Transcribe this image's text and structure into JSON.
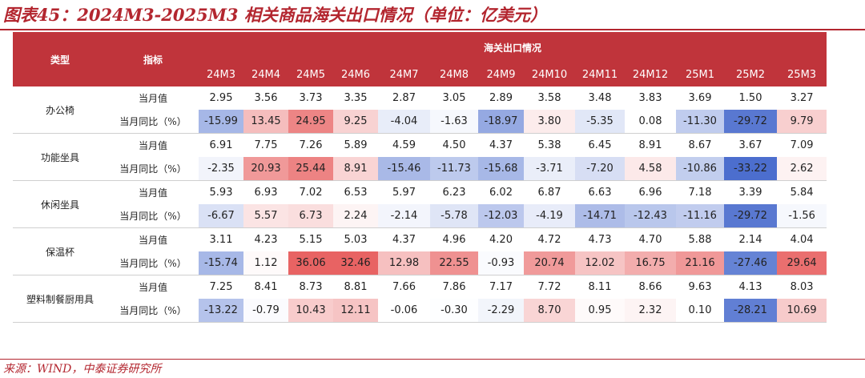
{
  "title": "图表45：2024M3-2025M3 相关商品海关出口情况（单位：亿美元）",
  "header": {
    "type_label": "类型",
    "indicator_label": "指标",
    "group_label": "海关出口情况",
    "months": [
      "24M3",
      "24M4",
      "24M5",
      "24M6",
      "24M7",
      "24M8",
      "24M9",
      "24M10",
      "24M11",
      "24M12",
      "25M1",
      "25M2",
      "25M3"
    ]
  },
  "row_labels": {
    "value": "当月值",
    "yoy": "当月同比（%）"
  },
  "categories": [
    {
      "name": "办公椅",
      "value": [
        "2.95",
        "3.56",
        "3.73",
        "3.35",
        "2.87",
        "3.05",
        "2.89",
        "3.58",
        "3.48",
        "3.83",
        "3.69",
        "1.50",
        "3.27"
      ],
      "yoy": [
        "-15.99",
        "13.45",
        "24.95",
        "9.25",
        "-4.04",
        "-1.63",
        "-18.97",
        "3.80",
        "-5.35",
        "0.08",
        "-11.30",
        "-29.72",
        "9.79"
      ]
    },
    {
      "name": "功能坐具",
      "value": [
        "6.91",
        "7.75",
        "7.26",
        "5.89",
        "4.59",
        "4.50",
        "4.37",
        "5.38",
        "6.45",
        "8.91",
        "8.67",
        "3.67",
        "7.09"
      ],
      "yoy": [
        "-2.35",
        "20.93",
        "25.44",
        "8.91",
        "-15.46",
        "-11.73",
        "-15.68",
        "-3.71",
        "-7.20",
        "4.58",
        "-10.86",
        "-33.22",
        "2.62"
      ]
    },
    {
      "name": "休闲坐具",
      "value": [
        "5.93",
        "6.93",
        "7.02",
        "6.53",
        "5.97",
        "6.23",
        "6.02",
        "6.87",
        "6.63",
        "6.96",
        "7.18",
        "3.39",
        "5.84"
      ],
      "yoy": [
        "-6.67",
        "5.57",
        "6.73",
        "2.24",
        "-2.14",
        "-5.78",
        "-12.03",
        "-4.19",
        "-14.71",
        "-12.43",
        "-11.16",
        "-29.72",
        "-1.56"
      ]
    },
    {
      "name": "保温杯",
      "value": [
        "3.11",
        "4.23",
        "5.15",
        "5.03",
        "4.37",
        "4.96",
        "4.20",
        "4.72",
        "4.73",
        "4.70",
        "5.88",
        "2.14",
        "4.04"
      ],
      "yoy": [
        "-15.74",
        "1.12",
        "36.06",
        "32.46",
        "12.98",
        "22.55",
        "-0.93",
        "20.74",
        "12.02",
        "16.75",
        "21.16",
        "-27.46",
        "29.64"
      ]
    },
    {
      "name": "塑料制餐厨用具",
      "value": [
        "7.25",
        "8.41",
        "8.73",
        "8.81",
        "7.66",
        "7.86",
        "7.17",
        "7.72",
        "8.11",
        "8.66",
        "9.63",
        "4.13",
        "8.03"
      ],
      "yoy": [
        "-13.22",
        "-0.79",
        "10.43",
        "12.11",
        "-0.06",
        "-0.30",
        "-2.29",
        "8.70",
        "0.95",
        "2.32",
        "0.10",
        "-28.21",
        "10.69"
      ]
    }
  ],
  "source": "来源：WIND，中泰证券研究所"
}
